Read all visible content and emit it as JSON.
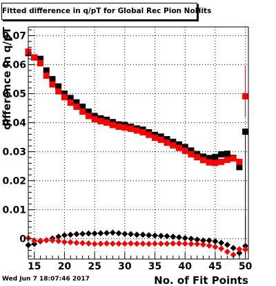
{
  "chart_data": {
    "type": "scatter",
    "title": "Fitted difference in q/pT for Global Rec Pion NoHits",
    "xlabel": "No. of Fit Points",
    "ylabel": "difference in q/pT",
    "xlim": [
      14,
      50.5
    ],
    "ylim": [
      -0.007,
      0.073
    ],
    "x_ticks": [
      "15",
      "20",
      "25",
      "30",
      "35",
      "40",
      "45",
      "50"
    ],
    "y_ticks": [
      "0",
      "0.01",
      "0.02",
      "0.03",
      "0.04",
      "0.05",
      "0.06",
      "0.07"
    ],
    "grid": true,
    "series": [
      {
        "marker": "square",
        "color": "#000000",
        "x": [
          14,
          15,
          16,
          17,
          18,
          19,
          20,
          21,
          22,
          23,
          24,
          25,
          26,
          27,
          28,
          29,
          30,
          31,
          32,
          33,
          34,
          35,
          36,
          37,
          38,
          39,
          40,
          41,
          42,
          43,
          44,
          45,
          46,
          47,
          48,
          49,
          50
        ],
        "y": [
          0.064,
          0.0625,
          0.062,
          0.058,
          0.055,
          0.0525,
          0.05,
          0.0485,
          0.047,
          0.0455,
          0.0438,
          0.0423,
          0.0415,
          0.041,
          0.0402,
          0.0394,
          0.0392,
          0.0386,
          0.038,
          0.0376,
          0.0367,
          0.0358,
          0.0352,
          0.0343,
          0.0334,
          0.0325,
          0.0316,
          0.0304,
          0.0292,
          0.0283,
          0.0278,
          0.0282,
          0.0291,
          0.0293,
          0.0279,
          0.0247,
          0.0369
        ]
      },
      {
        "marker": "square",
        "color": "#ff0000",
        "x": [
          14,
          15,
          16,
          17,
          18,
          19,
          20,
          21,
          22,
          23,
          24,
          25,
          26,
          27,
          28,
          29,
          30,
          31,
          32,
          33,
          34,
          35,
          36,
          37,
          38,
          39,
          40,
          41,
          42,
          43,
          44,
          45,
          46,
          47,
          48,
          49,
          50
        ],
        "y": [
          0.0645,
          0.0625,
          0.0605,
          0.0562,
          0.0532,
          0.0508,
          0.0488,
          0.0469,
          0.0455,
          0.0438,
          0.0423,
          0.0412,
          0.0405,
          0.04,
          0.0392,
          0.0386,
          0.0383,
          0.0379,
          0.0373,
          0.0367,
          0.0358,
          0.0348,
          0.0341,
          0.0331,
          0.0322,
          0.0313,
          0.0303,
          0.0291,
          0.0281,
          0.0271,
          0.0263,
          0.0261,
          0.0265,
          0.0272,
          0.0277,
          0.0265,
          0.0491
        ]
      },
      {
        "marker": "diamond",
        "color": "#000000",
        "x": [
          14,
          15,
          16,
          17,
          18,
          19,
          20,
          21,
          22,
          23,
          24,
          25,
          26,
          27,
          28,
          29,
          30,
          31,
          32,
          33,
          34,
          35,
          36,
          37,
          38,
          39,
          40,
          41,
          42,
          43,
          44,
          45,
          46,
          47,
          48,
          49,
          50
        ],
        "y": [
          -0.0022,
          -0.0018,
          -0.0009,
          -0.0005,
          0.0001,
          0.0007,
          0.0012,
          0.0014,
          0.0016,
          0.0017,
          0.0018,
          0.0018,
          0.0019,
          0.002,
          0.0021,
          0.0019,
          0.0017,
          0.0016,
          0.0014,
          0.0014,
          0.0012,
          0.0011,
          0.001,
          0.0009,
          0.0007,
          0.0005,
          0.0002,
          0.0,
          -0.0003,
          -0.0006,
          -0.0006,
          -0.0009,
          -0.0014,
          -0.0021,
          -0.0032,
          -0.0049,
          -0.0025
        ]
      },
      {
        "marker": "diamond",
        "color": "#ff0000",
        "x": [
          14,
          15,
          16,
          17,
          18,
          19,
          20,
          21,
          22,
          23,
          24,
          25,
          26,
          27,
          28,
          29,
          30,
          31,
          32,
          33,
          34,
          35,
          36,
          37,
          38,
          39,
          40,
          41,
          42,
          43,
          44,
          45,
          46,
          47,
          48,
          49,
          50
        ],
        "y": [
          0.0002,
          -0.0007,
          -0.0007,
          -0.0005,
          -0.0006,
          -0.0008,
          -0.0011,
          -0.0012,
          -0.0014,
          -0.0015,
          -0.0016,
          -0.0018,
          -0.0017,
          -0.0016,
          -0.0017,
          -0.0017,
          -0.0017,
          -0.0016,
          -0.0017,
          -0.0017,
          -0.0018,
          -0.0017,
          -0.0017,
          -0.0017,
          -0.0016,
          -0.0016,
          -0.0017,
          -0.0018,
          -0.0018,
          -0.002,
          -0.0024,
          -0.0028,
          -0.0034,
          -0.0045,
          -0.0055,
          -0.0036,
          -0.0037
        ]
      }
    ],
    "error_bars": [
      {
        "series": 0,
        "index": 36,
        "low": 0.0,
        "high": 0.0369
      },
      {
        "series": 1,
        "index": 36,
        "low": 0.0419,
        "high": 0.0596
      },
      {
        "series": 2,
        "index": 36,
        "low": -0.0045,
        "high": 0.0077
      },
      {
        "series": 3,
        "index": 36,
        "low": -0.006,
        "high": -0.0014
      }
    ],
    "timestamp": "Wed Jun  7 18:07:46 2017"
  }
}
